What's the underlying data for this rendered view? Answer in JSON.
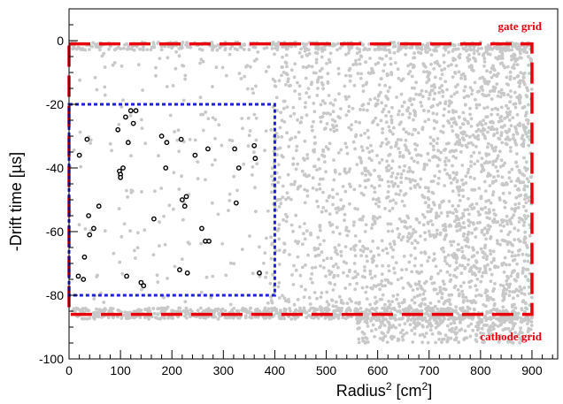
{
  "chart_data": {
    "type": "scatter",
    "xlabel": "Radius",
    "xlabel_sup": "2",
    "xlabel_unit": " [cm",
    "xlabel_unit_sup": "2",
    "xlabel_end": "]",
    "ylabel": "-Drift time [µs]",
    "xlim": [
      0,
      950
    ],
    "ylim": [
      -100,
      10
    ],
    "x_ticks": [
      0,
      100,
      200,
      300,
      400,
      500,
      600,
      700,
      800,
      900
    ],
    "y_ticks": [
      0,
      -20,
      -40,
      -60,
      -80,
      -100
    ],
    "grid": false,
    "annotations": {
      "gate": "gate grid",
      "cathode": "cathode grid"
    },
    "regions": {
      "tpc_boundary": {
        "r2": [
          0,
          900
        ],
        "dt": [
          -86,
          -1
        ],
        "color": "#e8000b",
        "style": "dashed"
      },
      "fiducial_volume": {
        "r2": [
          0,
          400
        ],
        "dt": [
          -80,
          -20
        ],
        "color": "#1f1fe0",
        "style": "dotted"
      }
    },
    "colors": {
      "background_events": "#c8c8c8",
      "candidate_events": "#000000"
    },
    "series": [
      {
        "kind": "candidate_events",
        "points": [
          [
            18,
            -74
          ],
          [
            20,
            -36
          ],
          [
            28,
            -75
          ],
          [
            30,
            -68
          ],
          [
            35,
            -31
          ],
          [
            38,
            -55
          ],
          [
            40,
            -61
          ],
          [
            48,
            -59
          ],
          [
            58,
            -52
          ],
          [
            95,
            -28
          ],
          [
            98,
            -41
          ],
          [
            100,
            -42
          ],
          [
            100,
            -43
          ],
          [
            105,
            -40
          ],
          [
            110,
            -24
          ],
          [
            112,
            -74
          ],
          [
            115,
            -32
          ],
          [
            120,
            -22
          ],
          [
            125,
            -26
          ],
          [
            130,
            -22
          ],
          [
            140,
            -76
          ],
          [
            145,
            -77
          ],
          [
            165,
            -56
          ],
          [
            180,
            -30
          ],
          [
            188,
            -40
          ],
          [
            190,
            -32
          ],
          [
            215,
            -72
          ],
          [
            218,
            -31
          ],
          [
            220,
            -50
          ],
          [
            225,
            -52
          ],
          [
            228,
            -49
          ],
          [
            230,
            -73
          ],
          [
            245,
            -36
          ],
          [
            258,
            -59
          ],
          [
            265,
            -63
          ],
          [
            270,
            -34
          ],
          [
            272,
            -63
          ],
          [
            322,
            -34
          ],
          [
            325,
            -51
          ],
          [
            330,
            -40
          ],
          [
            360,
            -33
          ],
          [
            362,
            -37
          ],
          [
            370,
            -73
          ]
        ]
      }
    ]
  }
}
